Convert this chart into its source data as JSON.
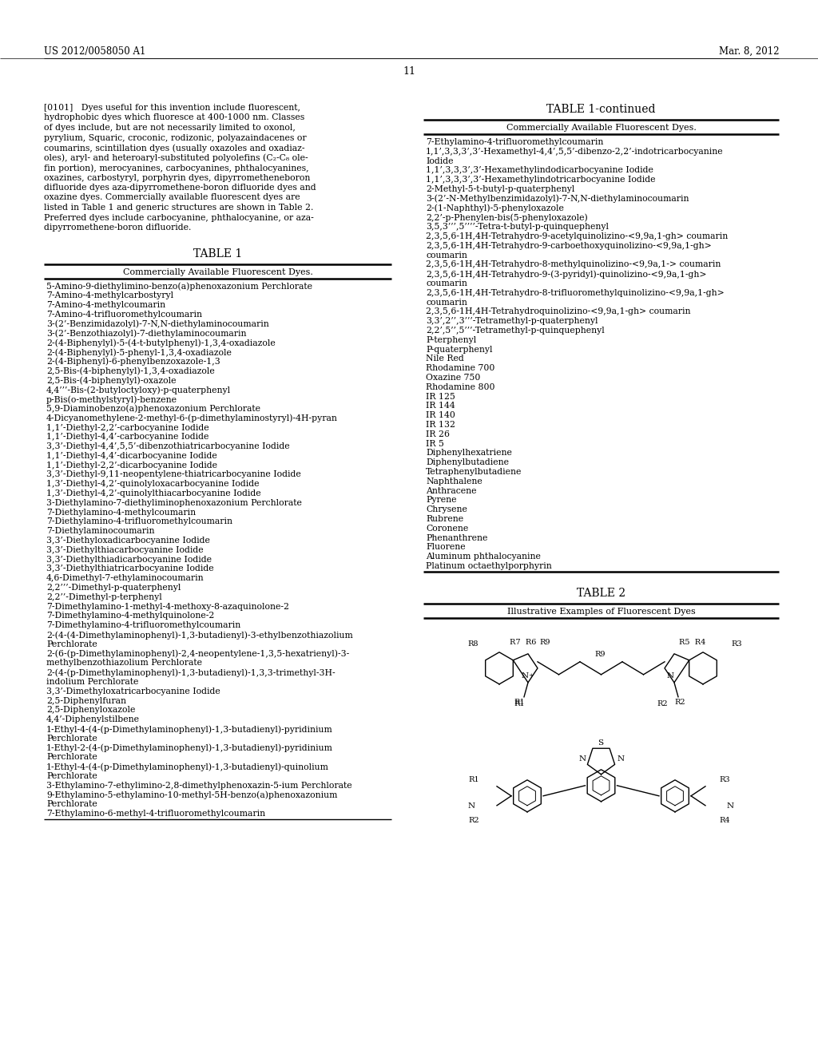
{
  "bg_color": "#ffffff",
  "header_left": "US 2012/0058050 A1",
  "header_right": "Mar. 8, 2012",
  "page_number": "11",
  "para_lines": [
    "[0101]   Dyes useful for this invention include fluorescent,",
    "hydrophobic dyes which fluoresce at 400-1000 nm. Classes",
    "of dyes include, but are not necessarily limited to oxonol,",
    "pyrylium, Squaric, croconic, rodizonic, polyazaindacenes or",
    "coumarins, scintillation dyes (usually oxazoles and oxadiaz-",
    "oles), aryl- and heteroaryl-substituted polyolefins (C₂-C₈ ole-",
    "fin portion), merocyanines, carbocyanines, phthalocyanines,",
    "oxazines, carbostyryl, porphyrin dyes, dipyrrometheneboron",
    "difluoride dyes aza-dipyrromethene­boron difluoride dyes and",
    "oxazine dyes. Commercially available fluorescent dyes are",
    "listed in Table 1 and generic structures are shown in Table 2.",
    "Preferred dyes include carbocyanine, phthalocyanine, or aza-",
    "dipyrromethene­boron difluoride."
  ],
  "table1_title": "TABLE 1",
  "table1_header": "Commercially Available Fluorescent Dyes.",
  "table1_entries_left": [
    "5-Amino-9-diethylimino­benzo(a)phenoxazonium Perchlorate",
    "7-Amino-4-methylcarbostyryl",
    "7-Amino-4-methylcoumarin",
    "7-Amino-4-trifluoromethylcoumarin",
    "3-(2’-Benzimidazolyl)-7-N,N-diethylaminocoumarin",
    "3-(2’-Benzothiazolyl)-7-diethylaminocoumarin",
    "2-(4-Biphenylyl)-5-(4-t-butylphenyl)-1,3,4-oxadiazole",
    "2-(4-Biphenylyl)-5-phenyl-1,3,4-oxadiazole",
    "2-(4-Biphenyl)-6-phenylbenzoxazole-1,3",
    "2,5-Bis-(4-biphenylyl)-1,3,4-oxadiazole",
    "2,5-Bis-(4-biphenylyl)-oxazole",
    "4,4’’’-Bis-(2-butyloctyloxy)-p-quaterphenyl",
    "p-Bis(o-methylstyryl)-benzene",
    "5,9-Diaminobenzo(a)phenoxazonium Perchlorate",
    "4-Dicyanomethylene-2-methyl-6-(p-dimethylaminostyryl)-4H-pyran",
    "1,1’-Diethyl-2,2’-carbocyanine Iodide",
    "1,1’-Diethyl-4,4’-carbocyanine Iodide",
    "3,3’-Diethyl-4,4’,5,5’-dibenzothiatricarbocyanine Iodide",
    "1,1’-Diethyl-4,4’-dicarbocyanine Iodide",
    "1,1’-Diethyl-2,2’-dicarbocyanine Iodide",
    "3,3’-Diethyl-9,11-neopentylene­thiatricarbocyanine Iodide",
    "1,3’-Diethyl-4,2’-quinolyloxacarbocyanine Iodide",
    "1,3’-Diethyl-4,2’-quinolylthiacarbocyanine Iodide",
    "3-Diethylamino-7-diethyliminophenoxazonium Perchlorate",
    "7-Diethylamino-4-methylcoumarin",
    "7-Diethylamino-4-trifluoromethylcoumarin",
    "7-Diethylaminocoumarin",
    "3,3’-Diethyloxadicarbocyanine Iodide",
    "3,3’-Diethylthiacarbocyanine Iodide",
    "3,3’-Diethylthiadicarbocyanine Iodide",
    "3,3’-Diethylthiatricarbocyanine Iodide",
    "4,6-Dimethyl-7-ethylaminocoumarin",
    "2,2’’’-Dimethyl-p-quaterphenyl",
    "2,2’’-Dimethyl-p-terphenyl",
    "7-Dimethylamino-1-methyl-4-methoxy-8-azaquinolone-2",
    "7-Dimethylamino-4-methylquinolone-2",
    "7-Dimethylamino-4-trifluoromethylcoumarin",
    "2-(4-(4-Dimethylaminophenyl)-1,3-butadienyl)-3-ethylbenzothiazolium|Perchlorate",
    "2-(6-(p-Dimethylaminophenyl)-2,4-neopentylene-1,3,5-hexatrienyl)-3-|methylbenzothiazolium Perchlorate",
    "2-(4-(p-Dimethylaminophenyl)-1,3-butadienyl)-1,3,3-trimethyl-3H-|indolium Perchlorate",
    "3,3’-Dimethyloxatricarbocyanine Iodide",
    "2,5-Diphenylfuran",
    "2,5-Diphenyloxazole",
    "4,4’-Diphenylstilbene",
    "1-Ethyl-4-(4-(p-Dimethylaminophenyl)-1,3-butadienyl)-pyridinium|Perchlorate",
    "1-Ethyl-2-(4-(p-Dimethylaminophenyl)-1,3-butadienyl)-pyridinium|Perchlorate",
    "1-Ethyl-4-(4-(p-Dimethylaminophenyl)-1,3-butadienyl)-quinolium|Perchlorate",
    "3-Ethylamino-7-ethylimino-2,8-dimethylphenoxazin-5-ium Perchlorate",
    "9-Ethylamino-5-ethylamino-10-methyl-5H-benzo(a)phenoxazonium|Perchlorate",
    "7-Ethylamino-6-methyl-4-trifluoromethylcoumarin"
  ],
  "table1_continued_title": "TABLE 1-continued",
  "table1_continued_header": "Commercially Available Fluorescent Dyes.",
  "table1_entries_right": [
    "7-Ethylamino-4-trifluoromethylcoumarin",
    "1,1’,3,3,3’,3’-Hexamethyl-4,4’,5,5’-dibenzo-2,2’-indotricarbocyanine|Iodide",
    "1,1’,3,3,3’,3’-Hexamethylindodicarbocyanine Iodide",
    "1,1’,3,3,3’,3’-Hexamethylindotricarbocyanine Iodide",
    "2-Methyl-5-t-butyl-p-quaterphenyl",
    "3-(2’-N-Methylbenzimidazolyl)-7-N,N-diethylaminocoumarin",
    "2-(1-Naphthyl)-5-phenyloxazole",
    "2,2’-p-Phenylen-bis(5-phenyloxazole)",
    "3,5,3’’’,5’’’’-Tetra-t-butyl-p-quinquephenyl",
    "2,3,5,6-1H,4H-Tetrahydro-9-acetylquinolizino-<9,9a,1-gh> coumarin",
    "2,3,5,6-1H,4H-Tetrahydro-9-carboethoxyquinolizino-<9,9a,1-gh>|coumarin",
    "2,3,5,6-1H,4H-Tetrahydro-8-methylquinolizino-<9,9a,1-> coumarin",
    "2,3,5,6-1H,4H-Tetrahydro-9-(3-pyridyl)-quinolizino-<9,9a,1-gh>|coumarin",
    "2,3,5,6-1H,4H-Tetrahydro-8-trifluoromethylquinolizino-<9,9a,1-gh>|coumarin",
    "2,3,5,6-1H,4H-Tetrahydroquinolizino-<9,9a,1-gh> coumarin",
    "3,3’,2’’,3’’’-Tetramethyl-p-quaterphenyl",
    "2,2’,5’’,5’’’-Tetramethyl-p-quinquephenyl",
    "P-terphenyl",
    "P-quaterphenyl",
    "Nile Red",
    "Rhodamine 700",
    "Oxazine 750",
    "Rhodamine 800",
    "IR 125",
    "IR 144",
    "IR 140",
    "IR 132",
    "IR 26",
    "IR 5",
    "Diphenylhexatriene",
    "Diphenylbutadiene",
    "Tetraphenylbutadiene",
    "Naphthalene",
    "Anthracene",
    "Pyrene",
    "Chrysene",
    "Rubrene",
    "Coronene",
    "Phenanthrene",
    "Fluorene",
    "Aluminum phthalocyanine",
    "Platinum octaethylporphyrin"
  ],
  "table2_title": "TABLE 2",
  "table2_header": "Illustrative Examples of Fluorescent Dyes"
}
